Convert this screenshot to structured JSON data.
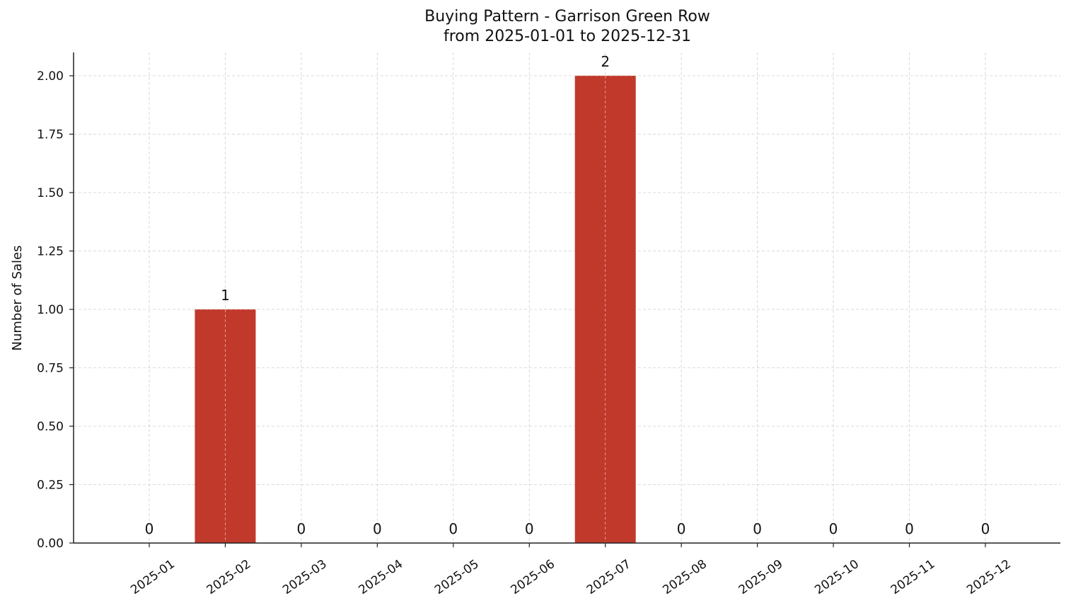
{
  "chart_data": {
    "type": "bar",
    "title": "Buying Pattern - Garrison Green Row",
    "subtitle": "from 2025-01-01 to 2025-12-31",
    "xlabel": "",
    "ylabel": "Number of Sales",
    "categories": [
      "2025-01",
      "2025-02",
      "2025-03",
      "2025-04",
      "2025-05",
      "2025-06",
      "2025-07",
      "2025-08",
      "2025-09",
      "2025-10",
      "2025-11",
      "2025-12"
    ],
    "values": [
      0,
      1,
      0,
      0,
      0,
      0,
      2,
      0,
      0,
      0,
      0,
      0
    ],
    "data_labels": [
      "0",
      "1",
      "0",
      "0",
      "0",
      "0",
      "2",
      "0",
      "0",
      "0",
      "0",
      "0"
    ],
    "ylim": [
      0,
      2.1
    ],
    "yticks": [
      0.0,
      0.25,
      0.5,
      0.75,
      1.0,
      1.25,
      1.5,
      1.75,
      2.0
    ],
    "ytick_labels": [
      "0.00",
      "0.25",
      "0.50",
      "0.75",
      "1.00",
      "1.25",
      "1.50",
      "1.75",
      "2.00"
    ],
    "grid": true,
    "grid_style": "dashed",
    "legend": null,
    "bar_color": "#c0392b",
    "xtick_rotation": 35
  }
}
